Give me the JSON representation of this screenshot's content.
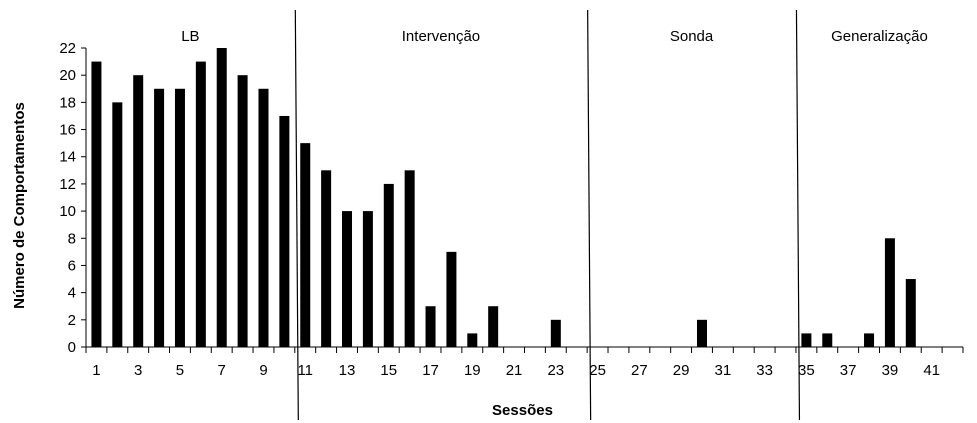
{
  "chart_data": {
    "type": "bar",
    "xlabel": "Sessões",
    "ylabel": "Número de Comportamentos",
    "ylim": [
      0,
      22
    ],
    "yticks": [
      0,
      2,
      4,
      6,
      8,
      10,
      12,
      14,
      16,
      18,
      20,
      22
    ],
    "xlim": [
      1,
      42
    ],
    "xticks": [
      1,
      3,
      5,
      7,
      9,
      11,
      13,
      15,
      17,
      19,
      21,
      23,
      25,
      27,
      29,
      31,
      33,
      35,
      37,
      39,
      41
    ],
    "bar_color": "#000000",
    "grid": false,
    "phases": [
      {
        "label": "LB",
        "start_session": 1,
        "end_session": 10
      },
      {
        "label": "Intervenção",
        "start_session": 11,
        "end_session": 24
      },
      {
        "label": "Sonda",
        "start_session": 25,
        "end_session": 34
      },
      {
        "label": "Generalização",
        "start_session": 35,
        "end_session": 42
      }
    ],
    "phase_change_after_sessions": [
      10,
      24,
      34
    ],
    "points": [
      {
        "x": 1,
        "y": 21
      },
      {
        "x": 2,
        "y": 18
      },
      {
        "x": 3,
        "y": 20
      },
      {
        "x": 4,
        "y": 19
      },
      {
        "x": 5,
        "y": 19
      },
      {
        "x": 6,
        "y": 21
      },
      {
        "x": 7,
        "y": 22
      },
      {
        "x": 8,
        "y": 20
      },
      {
        "x": 9,
        "y": 19
      },
      {
        "x": 10,
        "y": 17
      },
      {
        "x": 11,
        "y": 15
      },
      {
        "x": 12,
        "y": 13
      },
      {
        "x": 13,
        "y": 10
      },
      {
        "x": 14,
        "y": 10
      },
      {
        "x": 15,
        "y": 12
      },
      {
        "x": 16,
        "y": 13
      },
      {
        "x": 17,
        "y": 3
      },
      {
        "x": 18,
        "y": 7
      },
      {
        "x": 19,
        "y": 1
      },
      {
        "x": 20,
        "y": 3
      },
      {
        "x": 21,
        "y": 0
      },
      {
        "x": 22,
        "y": 0
      },
      {
        "x": 23,
        "y": 2
      },
      {
        "x": 24,
        "y": 0
      },
      {
        "x": 25,
        "y": 0
      },
      {
        "x": 26,
        "y": 0
      },
      {
        "x": 27,
        "y": 0
      },
      {
        "x": 28,
        "y": 0
      },
      {
        "x": 29,
        "y": 0
      },
      {
        "x": 30,
        "y": 2
      },
      {
        "x": 31,
        "y": 0
      },
      {
        "x": 32,
        "y": 0
      },
      {
        "x": 33,
        "y": 0
      },
      {
        "x": 34,
        "y": 0
      },
      {
        "x": 35,
        "y": 1
      },
      {
        "x": 36,
        "y": 1
      },
      {
        "x": 37,
        "y": 0
      },
      {
        "x": 38,
        "y": 1
      },
      {
        "x": 39,
        "y": 8
      },
      {
        "x": 40,
        "y": 5
      },
      {
        "x": 41,
        "y": 0
      },
      {
        "x": 42,
        "y": 0
      }
    ]
  }
}
